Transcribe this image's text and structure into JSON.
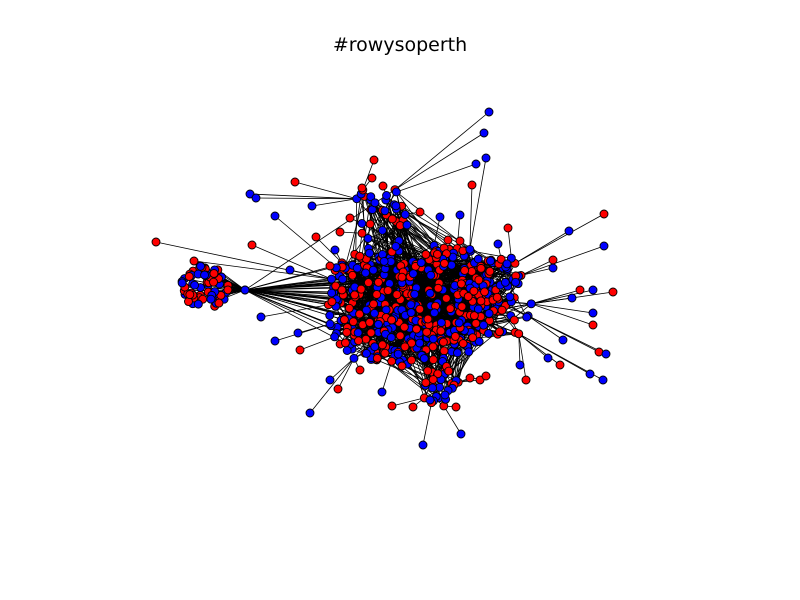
{
  "figure": {
    "title": "#rowysoperth"
  },
  "graph": {
    "node_colors": {
      "red": "#ff0000",
      "blue": "#0000ff",
      "outline": "#000000"
    },
    "edge_color": "#000000",
    "background": "#ffffff"
  }
}
